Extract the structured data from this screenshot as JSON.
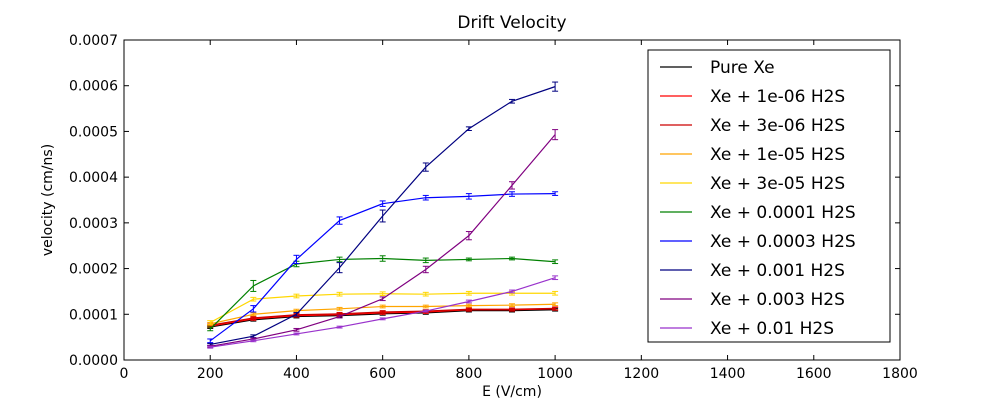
{
  "chart_data": {
    "type": "line",
    "title": "Drift Velocity",
    "xlabel": "E (V/cm)",
    "ylabel": "velocity (cm/ns)",
    "xlim": [
      0,
      1800
    ],
    "ylim": [
      0,
      0.0007
    ],
    "xticks": [
      "0",
      "200",
      "400",
      "600",
      "800",
      "1000",
      "1200",
      "1400",
      "1600",
      "1800"
    ],
    "yticks": [
      "0.0000",
      "0.0001",
      "0.0002",
      "0.0003",
      "0.0004",
      "0.0005",
      "0.0006",
      "0.0007"
    ],
    "grid": false,
    "legend_position": "top-right",
    "x": [
      200,
      300,
      400,
      500,
      600,
      700,
      800,
      900,
      1000
    ],
    "series": [
      {
        "name": "Pure Xe",
        "color": "#000000",
        "values": [
          7.2e-05,
          8.8e-05,
          9.5e-05,
          9.7e-05,
          0.000101,
          0.000103,
          0.000108,
          0.000108,
          0.00011
        ],
        "errors": [
          3e-06,
          3e-06,
          3e-06,
          3e-06,
          3e-06,
          3e-06,
          3e-06,
          3e-06,
          3e-06
        ]
      },
      {
        "name": "Xe + 1e-06 H2S",
        "color": "#ff0000",
        "values": [
          7.4e-05,
          9e-05,
          9.7e-05,
          9.9e-05,
          0.000103,
          0.000105,
          0.00011,
          0.00011,
          0.000112
        ],
        "errors": [
          3e-06,
          3e-06,
          3e-06,
          3e-06,
          3e-06,
          3e-06,
          3e-06,
          3e-06,
          3e-06
        ]
      },
      {
        "name": "Xe + 3e-06 H2S",
        "color": "#cc0000",
        "values": [
          7.6e-05,
          9.2e-05,
          9.9e-05,
          0.000101,
          0.000105,
          0.000107,
          0.000111,
          0.000111,
          0.000113
        ],
        "errors": [
          3e-06,
          3e-06,
          3e-06,
          3e-06,
          3e-06,
          3e-06,
          3e-06,
          3e-06,
          3e-06
        ]
      },
      {
        "name": "Xe + 1e-05 H2S",
        "color": "#ffa500",
        "values": [
          7.9e-05,
          0.0001,
          0.000108,
          0.000112,
          0.000117,
          0.000117,
          0.000119,
          0.00012,
          0.000122
        ],
        "errors": [
          3e-06,
          3e-06,
          3e-06,
          3e-06,
          3e-06,
          3e-06,
          3e-06,
          3e-06,
          3e-06
        ]
      },
      {
        "name": "Xe + 3e-05 H2S",
        "color": "#ffd700",
        "values": [
          8.2e-05,
          0.000133,
          0.00014,
          0.000144,
          0.000145,
          0.000144,
          0.000146,
          0.000146,
          0.000146
        ],
        "errors": [
          4e-06,
          4e-06,
          4e-06,
          4e-06,
          4e-06,
          4e-06,
          4e-06,
          4e-06,
          4e-06
        ]
      },
      {
        "name": "Xe + 0.0001 H2S",
        "color": "#008000",
        "values": [
          6.8e-05,
          0.000162,
          0.00021,
          0.00022,
          0.000222,
          0.000218,
          0.00022,
          0.000222,
          0.000215
        ],
        "errors": [
          4e-06,
          1.2e-05,
          6e-06,
          5e-06,
          6e-06,
          5e-06,
          3e-06,
          3e-06,
          4e-06
        ]
      },
      {
        "name": "Xe + 0.0003 H2S",
        "color": "#0000ff",
        "values": [
          4.2e-05,
          0.000112,
          0.00022,
          0.000305,
          0.000342,
          0.000355,
          0.000358,
          0.000363,
          0.000364
        ],
        "errors": [
          4e-06,
          7e-06,
          9e-06,
          8e-06,
          6e-06,
          5e-06,
          6e-06,
          5e-06,
          4e-06
        ]
      },
      {
        "name": "Xe + 0.001 H2S",
        "color": "#000080",
        "values": [
          3.4e-05,
          5.2e-05,
          0.0001,
          0.000202,
          0.000315,
          0.000422,
          0.000506,
          0.000566,
          0.000598
        ],
        "errors": [
          2e-06,
          3e-06,
          4e-06,
          1.1e-05,
          1.3e-05,
          9e-06,
          4e-06,
          4e-06,
          1e-05
        ]
      },
      {
        "name": "Xe + 0.003 H2S",
        "color": "#800080",
        "values": [
          3e-05,
          4.6e-05,
          6.6e-05,
          9.5e-05,
          0.000134,
          0.000198,
          0.000272,
          0.000382,
          0.000493
        ],
        "errors": [
          2e-06,
          2e-06,
          3e-06,
          3e-06,
          4e-06,
          7e-06,
          9e-06,
          8e-06,
          1.1e-05
        ]
      },
      {
        "name": "Xe + 0.01 H2S",
        "color": "#9932cc",
        "values": [
          2.8e-05,
          4.2e-05,
          5.7e-05,
          7.2e-05,
          9e-05,
          0.000107,
          0.000128,
          0.00015,
          0.00018
        ],
        "errors": [
          2e-06,
          2e-06,
          2e-06,
          2e-06,
          2e-06,
          2e-06,
          3e-06,
          3e-06,
          4e-06
        ]
      }
    ]
  }
}
